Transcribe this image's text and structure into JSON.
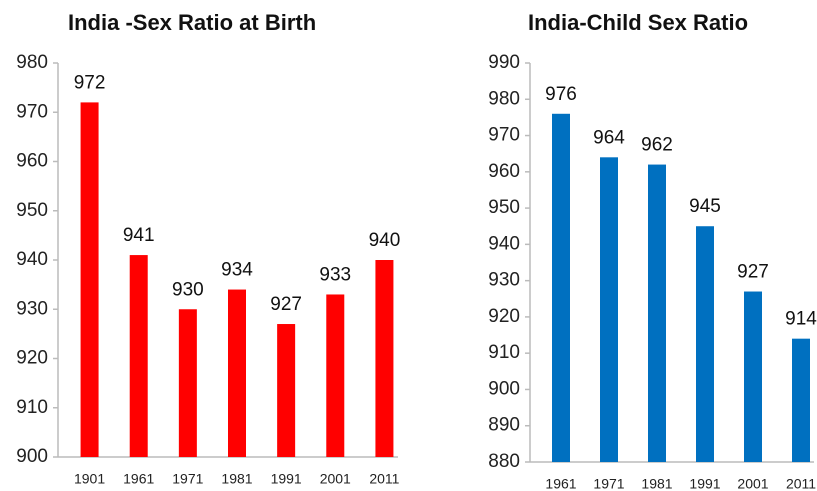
{
  "chart_data": [
    {
      "type": "bar",
      "title": "India -Sex Ratio at Birth",
      "categories": [
        "1901",
        "1961",
        "1971",
        "1981",
        "1991",
        "2001",
        "2011"
      ],
      "values": [
        972,
        941,
        930,
        934,
        927,
        933,
        940
      ],
      "color": "#ff0000",
      "ylim": [
        900,
        980
      ],
      "yticks": [
        900,
        910,
        920,
        930,
        940,
        950,
        960,
        970,
        980
      ]
    },
    {
      "type": "bar",
      "title": "India-Child Sex Ratio",
      "categories": [
        "1961",
        "1971",
        "1981",
        "1991",
        "2001",
        "2011"
      ],
      "values": [
        976,
        964,
        962,
        945,
        927,
        914
      ],
      "color": "#0070c0",
      "ylim": [
        880,
        990
      ],
      "yticks": [
        880,
        890,
        900,
        910,
        920,
        930,
        940,
        950,
        960,
        970,
        980,
        990
      ]
    }
  ]
}
